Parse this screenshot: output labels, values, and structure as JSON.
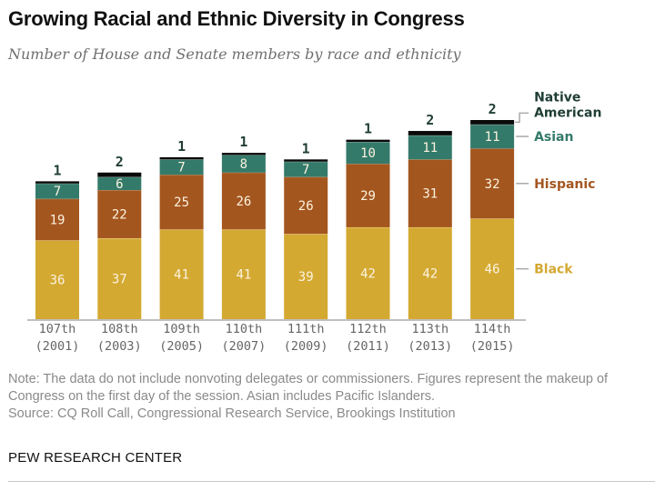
{
  "header": {
    "title": "Growing Racial and Ethnic Diversity in Congress",
    "subtitle": "Number of House and Senate members by race and ethnicity"
  },
  "footer": {
    "note": "Note: The data do not include nonvoting delegates or commissioners. Figures represent the makeup of Congress on the first day of the session. Asian includes Pacific Islanders.",
    "source": "Source: CQ Roll Call, Congressional Research Service, Brookings Institution",
    "brand": "PEW RESEARCH CENTER"
  },
  "colors": {
    "Black": "#d4a932",
    "Hispanic": "#a4561f",
    "Asian": "#347a6a",
    "Native American": "#0a0a0a",
    "label_native": "#1f3d35",
    "legend_black": "#d4a932",
    "legend_hispanic": "#a4561f",
    "legend_asian": "#347a6a",
    "legend_native": "#1f3d35"
  },
  "chart_data": {
    "type": "bar",
    "stacked": true,
    "title": "Growing Racial and Ethnic Diversity in Congress",
    "subtitle": "Number of House and Senate members by race and ethnicity",
    "xlabel": "",
    "ylabel": "",
    "categories": [
      "107th",
      "108th",
      "109th",
      "110th",
      "111th",
      "112th",
      "113th",
      "114th"
    ],
    "category_years": [
      "(2001)",
      "(2003)",
      "(2005)",
      "(2007)",
      "(2009)",
      "(2011)",
      "(2013)",
      "(2015)"
    ],
    "series": [
      {
        "name": "Black",
        "values": [
          36,
          37,
          41,
          41,
          39,
          42,
          42,
          46
        ]
      },
      {
        "name": "Hispanic",
        "values": [
          19,
          22,
          25,
          26,
          26,
          29,
          31,
          32
        ]
      },
      {
        "name": "Asian",
        "values": [
          7,
          6,
          7,
          8,
          7,
          10,
          11,
          11
        ]
      },
      {
        "name": "Native American",
        "values": [
          1,
          2,
          1,
          1,
          1,
          1,
          2,
          2
        ]
      }
    ],
    "legend": [
      "Native American",
      "Asian",
      "Hispanic",
      "Black"
    ],
    "legend_placement": "right",
    "ylim": [
      0,
      91
    ],
    "grid": false
  }
}
